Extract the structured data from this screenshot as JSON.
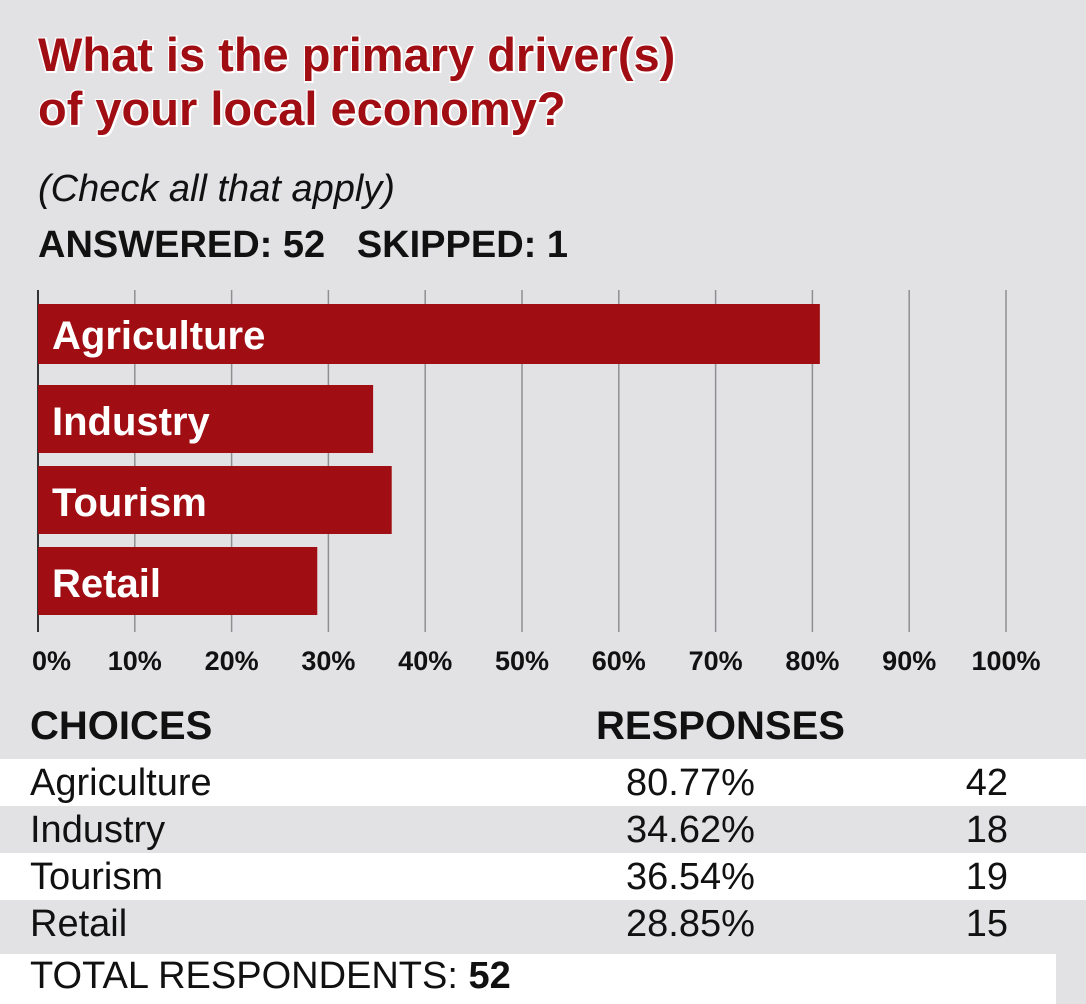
{
  "header": {
    "title_line1": "What is the primary driver(s)",
    "title_line2": "of your local economy?",
    "subtitle": "(Check all that apply)",
    "answered": "ANSWERED: 52   SKIPPED: 1"
  },
  "chart_data": {
    "type": "bar",
    "orientation": "horizontal",
    "categories": [
      "Agriculture",
      "Industry",
      "Tourism",
      "Retail"
    ],
    "values": [
      80.77,
      34.62,
      36.54,
      28.85
    ],
    "xlim": [
      0,
      100
    ],
    "tick_labels": [
      "0%",
      "10%",
      "20%",
      "30%",
      "40%",
      "50%",
      "60%",
      "70%",
      "80%",
      "90%",
      "100%"
    ],
    "grid": true,
    "bar_color": "#a00d12"
  },
  "table": {
    "headers": {
      "choices": "CHOICES",
      "responses": "RESPONSES"
    },
    "rows": [
      {
        "choice": "Agriculture",
        "percent": "80.77%",
        "count": "42"
      },
      {
        "choice": "Industry",
        "percent": "34.62%",
        "count": "18"
      },
      {
        "choice": "Tourism",
        "percent": "36.54%",
        "count": "19"
      },
      {
        "choice": "Retail",
        "percent": "28.85%",
        "count": "15"
      }
    ],
    "total_label": "TOTAL RESPONDENTS:",
    "total_value": "52"
  }
}
